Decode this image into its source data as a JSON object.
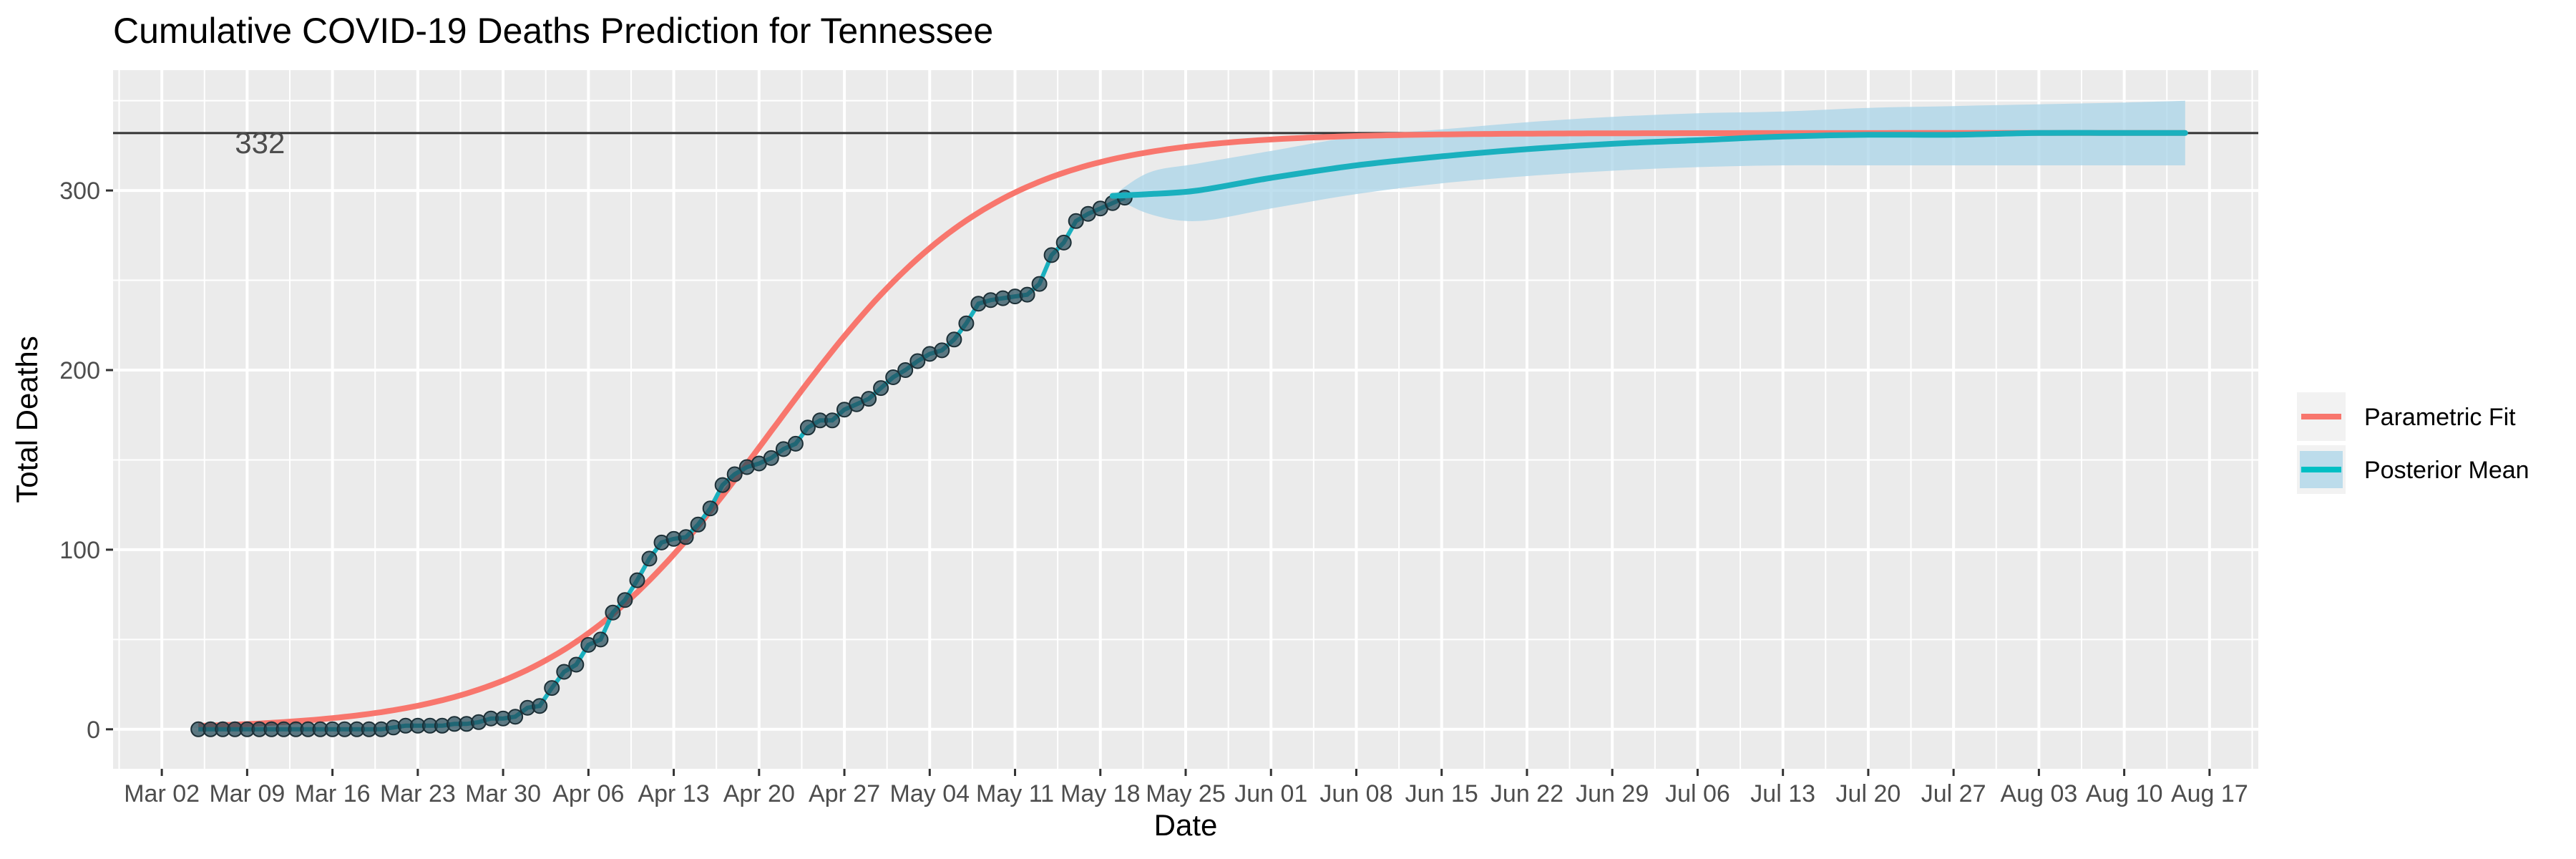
{
  "chart_data": {
    "type": "line",
    "title": "Cumulative COVID-19 Deaths Prediction for Tennessee",
    "xlabel": "Date",
    "ylabel": "Total Deaths",
    "x_ticks": [
      "Mar 02",
      "Mar 09",
      "Mar 16",
      "Mar 23",
      "Mar 30",
      "Apr 06",
      "Apr 13",
      "Apr 20",
      "Apr 27",
      "May 04",
      "May 11",
      "May 18",
      "May 25",
      "Jun 01",
      "Jun 08",
      "Jun 15",
      "Jun 22",
      "Jun 29",
      "Jul 06",
      "Jul 13",
      "Jul 20",
      "Jul 27",
      "Aug 03",
      "Aug 10",
      "Aug 17"
    ],
    "y_ticks": [
      "0",
      "100",
      "200",
      "300"
    ],
    "ylim": [
      -22,
      367
    ],
    "xlim": [
      "2020-02-27",
      "2020-08-21"
    ],
    "hline": {
      "value": 332,
      "label": "332"
    },
    "legend": {
      "position": "right",
      "entries": [
        {
          "name": "Parametric Fit",
          "color": "#F8766D"
        },
        {
          "name": "Posterior Mean",
          "color": "#00BFC4"
        }
      ]
    },
    "observed": {
      "start": "2020-03-05",
      "values": [
        0,
        0,
        0,
        0,
        0,
        0,
        0,
        0,
        0,
        0,
        0,
        0,
        0,
        0,
        0,
        0,
        1,
        2,
        2,
        2,
        2,
        3,
        3,
        4,
        6,
        6,
        7,
        12,
        13,
        23,
        32,
        36,
        47,
        50,
        65,
        72,
        83,
        95,
        104,
        106,
        107,
        114,
        123,
        136,
        142,
        146,
        148,
        151,
        156,
        159,
        168,
        172,
        172,
        178,
        181,
        184,
        190,
        196,
        200,
        205,
        209,
        211,
        217,
        226,
        237,
        239,
        240,
        241,
        242,
        248,
        264,
        271,
        283,
        287,
        290,
        293,
        296
      ]
    },
    "parametric_fit": {
      "start": "2020-03-05",
      "end": "2020-08-15",
      "asymptote": 332,
      "midpoint": "2020-04-21",
      "rate": 0.11
    },
    "posterior_mean": {
      "x": [
        "2020-05-19",
        "2020-05-22",
        "2020-05-26",
        "2020-06-01",
        "2020-06-08",
        "2020-06-15",
        "2020-06-22",
        "2020-06-29",
        "2020-07-06",
        "2020-07-13",
        "2020-07-20",
        "2020-07-27",
        "2020-08-03",
        "2020-08-10",
        "2020-08-15"
      ],
      "mean": [
        297,
        298,
        300,
        307,
        314,
        319,
        323,
        326,
        328,
        330,
        331,
        331,
        332,
        332,
        332
      ],
      "lower": [
        297,
        287,
        283,
        290,
        298,
        304,
        308,
        311,
        313,
        314,
        314,
        314,
        314,
        314,
        314
      ],
      "upper": [
        297,
        310,
        315,
        322,
        330,
        334,
        338,
        341,
        343,
        344,
        346,
        347,
        348,
        349,
        350
      ]
    },
    "grid": true,
    "colors": {
      "panel": "#EBEBEB",
      "grid": "#FFFFFF",
      "fit": "#F8766D",
      "posterior": "#1AB0BE",
      "band": "#A9D4E8",
      "points": "#234A57",
      "hline": "#333333"
    }
  }
}
